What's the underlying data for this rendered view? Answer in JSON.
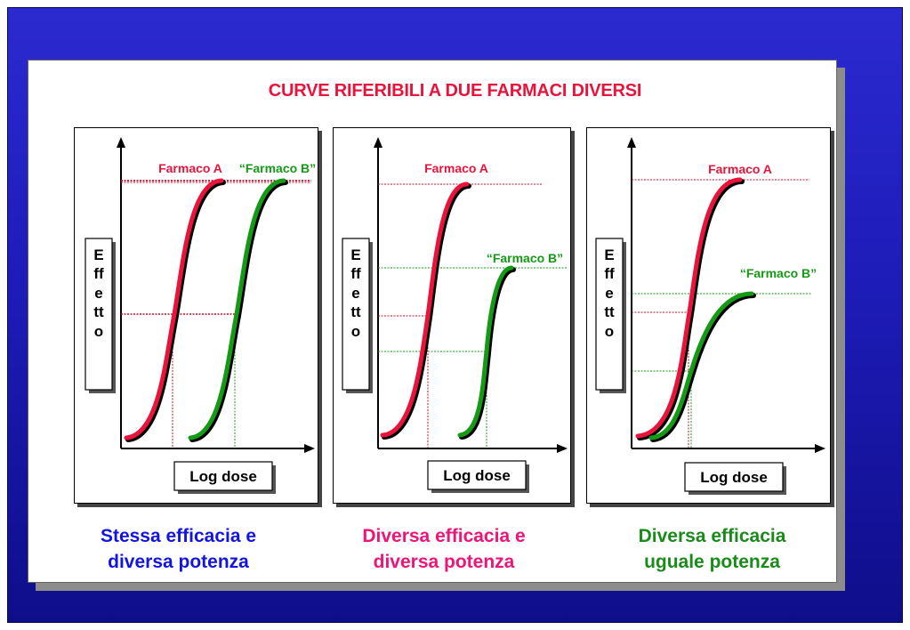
{
  "title": "CURVE RIFERIBILI  A DUE FARMACI DIVERSI",
  "colors": {
    "drug_a": "#e8143c",
    "drug_b": "#159a15",
    "title": "#e8143c",
    "background": "#1d1cb8"
  },
  "panels": [
    {
      "y_label_lines": [
        "E",
        "ff",
        "e",
        "tt",
        "o"
      ],
      "x_label": "Log dose",
      "label_a": "Farmaco A",
      "label_b": "“Farmaco B”",
      "caption_lines": [
        "Stessa efficacia e",
        "diversa potenza"
      ]
    },
    {
      "y_label_lines": [
        "E",
        "ff",
        "e",
        "tt",
        "o"
      ],
      "x_label": "Log dose",
      "label_a": "Farmaco A",
      "label_b": "“Farmaco B”",
      "caption_lines": [
        "Diversa efficacia e",
        "diversa potenza"
      ]
    },
    {
      "y_label_lines": [
        "E",
        "ff",
        "e",
        "tt",
        "o"
      ],
      "x_label": "Log dose",
      "label_a": "Farmaco A",
      "label_b": "“Farmaco B”",
      "caption_lines": [
        "Diversa efficacia",
        "uguale potenza"
      ]
    }
  ]
}
